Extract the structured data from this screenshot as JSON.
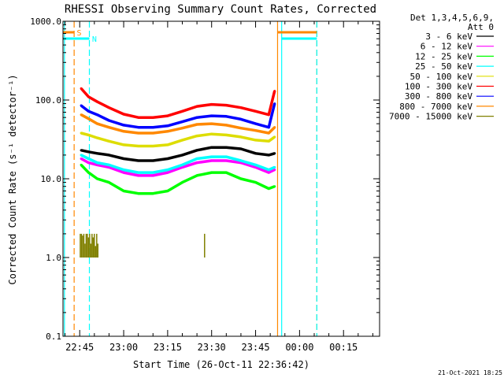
{
  "chart_data": {
    "type": "line",
    "title": "RHESSI Observing Summary Count Rates, Corrected",
    "ylabel": "Corrected Count Rate (s⁻¹ detector⁻¹)",
    "xlabel": "Start Time (26-Oct-11 22:36:42)",
    "y_scale": "log",
    "ylim": [
      0.1,
      1000.0
    ],
    "xlim_minutes": [
      -5.7,
      102.3
    ],
    "y_ticks": [
      "0.1",
      "1.0",
      "10.0",
      "100.0",
      "1000.0"
    ],
    "x_ticks": [
      {
        "label": "22:45",
        "t": 0
      },
      {
        "label": "23:00",
        "t": 15
      },
      {
        "label": "23:15",
        "t": 30
      },
      {
        "label": "23:30",
        "t": 45
      },
      {
        "label": "23:45",
        "t": 60
      },
      {
        "label": "00:00",
        "t": 75
      },
      {
        "label": "00:15",
        "t": 90
      }
    ],
    "legend_header": [
      "Det 1,3,4,5,6,9,",
      "Att 0"
    ],
    "series": [
      {
        "name": "3 - 6 keV",
        "color": "#000000",
        "x": [
          0.5,
          3,
          6,
          10,
          15,
          20,
          25,
          30,
          35,
          40,
          45,
          50,
          55,
          60,
          64.5,
          66.5
        ],
        "values": [
          23,
          22,
          21,
          20,
          18,
          17,
          17,
          18,
          20,
          23,
          25,
          25,
          24,
          21,
          20,
          21
        ]
      },
      {
        "name": "6 - 12 keV",
        "color": "#ff00ff",
        "x": [
          0.5,
          3,
          6,
          10,
          15,
          20,
          25,
          30,
          35,
          40,
          45,
          50,
          55,
          60,
          64.5,
          66.5
        ],
        "values": [
          18,
          16,
          15,
          14,
          12,
          11,
          11,
          12,
          14,
          16,
          17,
          17,
          16,
          14,
          12,
          13
        ]
      },
      {
        "name": "12 - 25 keV",
        "color": "#00ff00",
        "x": [
          0.5,
          3,
          6,
          10,
          15,
          20,
          25,
          30,
          35,
          40,
          45,
          50,
          55,
          60,
          64.5,
          66.5
        ],
        "values": [
          15,
          12,
          10,
          9,
          7,
          6.5,
          6.5,
          7,
          9,
          11,
          12,
          12,
          10,
          9,
          7.5,
          8
        ]
      },
      {
        "name": "25 - 50 keV",
        "color": "#00ffff",
        "x": [
          0.5,
          3,
          6,
          10,
          15,
          20,
          25,
          30,
          35,
          40,
          45,
          50,
          55,
          60,
          64.5,
          66.5
        ],
        "values": [
          20,
          18,
          16,
          15,
          13,
          12,
          12,
          13,
          15,
          18,
          19,
          19,
          17,
          15,
          13,
          14
        ]
      },
      {
        "name": "50 - 100 keV",
        "color": "#dddd00",
        "x": [
          0.5,
          3,
          6,
          10,
          15,
          20,
          25,
          30,
          35,
          40,
          45,
          50,
          55,
          60,
          64.5,
          66.5
        ],
        "values": [
          38,
          36,
          33,
          30,
          27,
          26,
          26,
          27,
          31,
          35,
          37,
          36,
          34,
          31,
          30,
          34
        ]
      },
      {
        "name": "100 - 300 keV",
        "color": "#ff0000",
        "x": [
          0.5,
          3,
          6,
          10,
          15,
          20,
          25,
          30,
          35,
          40,
          45,
          50,
          55,
          60,
          64.5,
          66.5
        ],
        "values": [
          140,
          110,
          95,
          80,
          66,
          60,
          60,
          63,
          72,
          83,
          88,
          86,
          80,
          72,
          65,
          130
        ]
      },
      {
        "name": "300 - 800 keV",
        "color": "#0000ff",
        "x": [
          0.5,
          3,
          6,
          10,
          15,
          20,
          25,
          30,
          35,
          40,
          45,
          50,
          55,
          60,
          64.5,
          66.5
        ],
        "values": [
          85,
          72,
          65,
          55,
          48,
          45,
          45,
          47,
          53,
          60,
          63,
          62,
          57,
          50,
          45,
          90
        ]
      },
      {
        "name": "800 - 7000 keV",
        "color": "#ff8800",
        "x": [
          0.5,
          3,
          6,
          10,
          15,
          20,
          25,
          30,
          35,
          40,
          45,
          50,
          55,
          60,
          64.5,
          66.5
        ],
        "values": [
          65,
          58,
          50,
          45,
          40,
          38,
          38,
          40,
          44,
          49,
          50,
          48,
          44,
          41,
          38,
          45
        ]
      },
      {
        "name": "7000 - 15000 keV",
        "color": "#808000",
        "x": [
          0.2,
          0.6,
          1.0,
          1.4,
          1.8,
          2.2,
          2.6,
          3.0,
          3.4,
          3.8,
          4.2,
          4.6,
          5.0,
          5.4,
          5.8,
          6.2,
          28.5,
          32,
          38,
          42,
          42.6,
          47,
          52,
          57,
          61.5
        ],
        "values": [
          2,
          2,
          1.9,
          2,
          1.5,
          2,
          2,
          1.8,
          2,
          1.5,
          2,
          1.8,
          2,
          1.4,
          2,
          1.5,
          1,
          1,
          1,
          1,
          2,
          1,
          1,
          1,
          1
        ]
      }
    ],
    "vertical_markers": [
      {
        "t": -5.2,
        "color": "#00ffff",
        "style": "solid"
      },
      {
        "t": -1.9,
        "color": "#ff8800",
        "style": "dashed",
        "label": "S"
      },
      {
        "t": 3.3,
        "color": "#00ffff",
        "style": "dashed",
        "label": "N"
      },
      {
        "t": 67.5,
        "color": "#ff8800",
        "style": "solid"
      },
      {
        "t": 68.9,
        "color": "#00ffff",
        "style": "solid"
      },
      {
        "t": 80.9,
        "color": "#ff8800",
        "style": "dashed"
      },
      {
        "t": 80.9,
        "color": "#00ffff",
        "style": "dashed"
      }
    ],
    "state_bars": [
      {
        "label": "S",
        "color": "#ff8800",
        "segments": [
          [
            -5.7,
            -1.9
          ],
          [
            67.5,
            80.9
          ]
        ]
      },
      {
        "label": "N",
        "color": "#00ffff",
        "segments": [
          [
            -5.7,
            3.3
          ],
          [
            68.9,
            80.9
          ]
        ]
      }
    ]
  },
  "footer": {
    "timestamp": "21-Oct-2021 18:25"
  }
}
